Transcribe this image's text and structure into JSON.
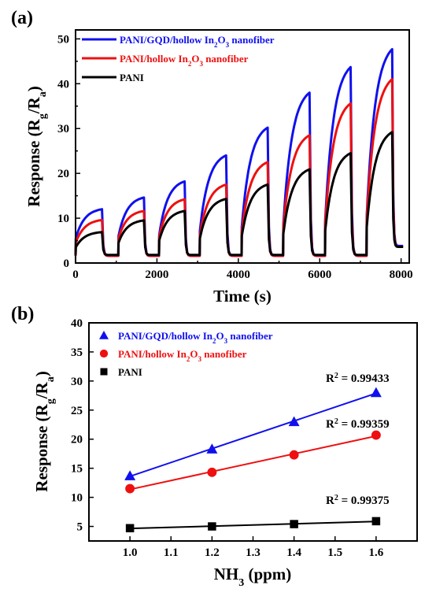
{
  "chart_data": [
    {
      "panel_label": "(a)",
      "type": "line",
      "xlabel": "Time (s)",
      "ylabel_base": "Response (R",
      "ylabel_sub1": "g",
      "ylabel_mid": "/R",
      "ylabel_sub2": "a",
      "ylabel_end": ")",
      "xlim": [
        0,
        8200
      ],
      "ylim": [
        0,
        52
      ],
      "xticks": [
        0,
        2000,
        4000,
        6000,
        8000
      ],
      "yticks": [
        0,
        10,
        20,
        30,
        40,
        50
      ],
      "legend_position": "top-left",
      "cycles": {
        "on_times": [
          0,
          1050,
          2050,
          3050,
          4080,
          5100,
          6130,
          7150
        ],
        "off_times": [
          650,
          1680,
          2680,
          3700,
          4720,
          5750,
          6760,
          7780
        ],
        "end_time": 8050
      },
      "series": [
        {
          "name_pre": "PANI/GQD/hollow In",
          "name_sub1": "2",
          "name_mid": "O",
          "name_sub2": "3",
          "name_post": " nanofiber",
          "color": "#1010ee",
          "baseline": 1.6,
          "start_values": [
            5.5,
            6.0,
            6.2,
            7.2,
            8.0,
            8.5,
            9.5,
            10.5
          ],
          "peaks": [
            12,
            14.6,
            18.2,
            24,
            30.2,
            38,
            43.7,
            47.7
          ],
          "tail": 3.8
        },
        {
          "name_pre": "PANI/hollow In",
          "name_sub1": "2",
          "name_mid": "O",
          "name_sub2": "3",
          "name_post": " nanofiber",
          "color": "#ee1010",
          "baseline": 1.6,
          "start_values": [
            4.5,
            5.5,
            5.8,
            6.2,
            7.0,
            8.0,
            9.0,
            10.0
          ],
          "peaks": [
            9.6,
            11.6,
            14.2,
            17.5,
            22.5,
            28.5,
            35.6,
            41
          ],
          "tail": 3.6
        },
        {
          "name_pre": "PANI",
          "name_sub1": "",
          "name_mid": "",
          "name_sub2": "",
          "name_post": "",
          "color": "#000000",
          "baseline": 1.8,
          "start_values": [
            3.5,
            4.5,
            5.0,
            5.5,
            6.0,
            6.5,
            7.2,
            8.0
          ],
          "peaks": [
            6.9,
            9.5,
            11.6,
            14.3,
            17.5,
            20.9,
            24.5,
            29.2
          ],
          "tail": 3.6
        }
      ]
    },
    {
      "panel_label": "(b)",
      "type": "scatter",
      "xlabel_base": "NH",
      "xlabel_sub": "3",
      "xlabel_end": " (ppm)",
      "ylabel_base": "Response (R",
      "ylabel_sub1": "g",
      "ylabel_mid": "/R",
      "ylabel_sub2": "a",
      "ylabel_end": ")",
      "xlim": [
        0.9,
        1.7
      ],
      "ylim": [
        2.5,
        40
      ],
      "xticks": [
        "1.0",
        "1.1",
        "1.2",
        "1.3",
        "1.4",
        "1.5",
        "1.6"
      ],
      "yticks": [
        5,
        10,
        15,
        20,
        25,
        30,
        35,
        40
      ],
      "legend_position": "top-left",
      "x": [
        1.0,
        1.2,
        1.4,
        1.6
      ],
      "series": [
        {
          "name_pre": "PANI/GQD/hollow In",
          "name_sub1": "2",
          "name_mid": "O",
          "name_sub2": "3",
          "name_post": " nanofiber",
          "color": "#1010ee",
          "marker": "triangle",
          "values": [
            13.7,
            18.3,
            23.0,
            28.0
          ],
          "r2_label": "R",
          "r2_sup": "2",
          "r2_value": " = 0.99433"
        },
        {
          "name_pre": "PANI/hollow In",
          "name_sub1": "2",
          "name_mid": "O",
          "name_sub2": "3",
          "name_post": " nanofiber",
          "color": "#ee1010",
          "marker": "circle",
          "values": [
            11.5,
            14.3,
            17.3,
            20.7
          ],
          "r2_label": "R",
          "r2_sup": "2",
          "r2_value": " = 0.99359"
        },
        {
          "name_pre": "PANI",
          "name_sub1": "",
          "name_mid": "",
          "name_sub2": "",
          "name_post": "",
          "color": "#000000",
          "marker": "square",
          "values": [
            4.7,
            5.0,
            5.4,
            5.9
          ],
          "r2_label": "R",
          "r2_sup": "2",
          "r2_value": " = 0.99375"
        }
      ]
    }
  ]
}
